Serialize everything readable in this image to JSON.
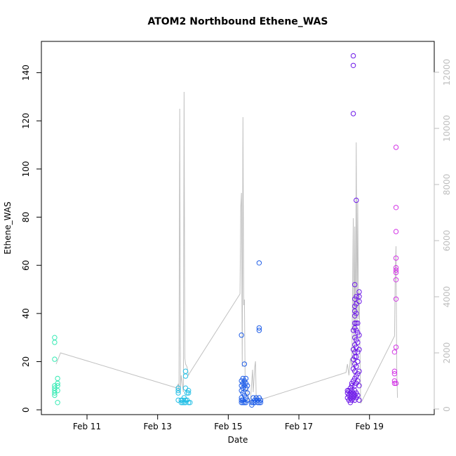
{
  "chart_data": {
    "type": "scatter",
    "title": "ATOM2 Northbound Ethene_WAS",
    "xlabel": "Date",
    "ylabel": "Ethene_WAS",
    "x_axis": {
      "type": "date",
      "range": [
        "2016-02-09T17:00",
        "2016-02-20T20:00"
      ],
      "ticks": [
        {
          "value": "2016-02-11",
          "label": "Feb 11"
        },
        {
          "value": "2016-02-13",
          "label": "Feb 13"
        },
        {
          "value": "2016-02-15",
          "label": "Feb 15"
        },
        {
          "value": "2016-02-17",
          "label": "Feb 17"
        },
        {
          "value": "2016-02-19",
          "label": "Feb 19"
        }
      ]
    },
    "y_axis_left": {
      "range": [
        -2,
        153
      ],
      "ticks": [
        0,
        20,
        40,
        60,
        80,
        100,
        120,
        140
      ]
    },
    "y_axis_right": {
      "range": [
        -200,
        13100
      ],
      "ticks": [
        0,
        2000,
        4000,
        6000,
        8000,
        10000,
        12000
      ],
      "color": "#bebebe"
    },
    "grid": false,
    "legend": "none",
    "series": [
      {
        "color": "#36eab4",
        "points": [
          [
            "2016-02-10T02:00",
            30
          ],
          [
            "2016-02-10T02:00",
            28
          ],
          [
            "2016-02-10T02:00",
            21
          ],
          [
            "2016-02-10T02:00",
            10
          ],
          [
            "2016-02-10T02:00",
            9
          ],
          [
            "2016-02-10T02:00",
            8
          ],
          [
            "2016-02-10T02:00",
            7
          ],
          [
            "2016-02-10T02:00",
            6
          ],
          [
            "2016-02-10T04:00",
            13
          ],
          [
            "2016-02-10T04:00",
            11
          ],
          [
            "2016-02-10T04:00",
            10
          ],
          [
            "2016-02-10T04:00",
            8
          ],
          [
            "2016-02-10T04:00",
            3
          ]
        ]
      },
      {
        "color": "#27c0e6",
        "points": [
          [
            "2016-02-13T14:00",
            9
          ],
          [
            "2016-02-13T14:00",
            8
          ],
          [
            "2016-02-13T14:00",
            7
          ],
          [
            "2016-02-13T14:00",
            4
          ],
          [
            "2016-02-13T16:00",
            4
          ],
          [
            "2016-02-13T16:00",
            3
          ],
          [
            "2016-02-13T17:00",
            4
          ],
          [
            "2016-02-13T17:00",
            3
          ],
          [
            "2016-02-13T18:00",
            5
          ],
          [
            "2016-02-13T18:00",
            3
          ],
          [
            "2016-02-13T19:00",
            16
          ],
          [
            "2016-02-13T19:00",
            14
          ],
          [
            "2016-02-13T19:00",
            9
          ],
          [
            "2016-02-13T19:00",
            4
          ],
          [
            "2016-02-13T19:00",
            3
          ],
          [
            "2016-02-13T20:00",
            7
          ],
          [
            "2016-02-13T20:00",
            4
          ],
          [
            "2016-02-13T21:00",
            8
          ],
          [
            "2016-02-13T21:00",
            7
          ],
          [
            "2016-02-13T21:00",
            3
          ],
          [
            "2016-02-13T22:00",
            3
          ]
        ]
      },
      {
        "color": "#1f5ee8",
        "points": [
          [
            "2016-02-15T09:00",
            31
          ],
          [
            "2016-02-15T09:00",
            12
          ],
          [
            "2016-02-15T09:00",
            10
          ],
          [
            "2016-02-15T09:00",
            8
          ],
          [
            "2016-02-15T09:00",
            5
          ],
          [
            "2016-02-15T09:00",
            4
          ],
          [
            "2016-02-15T09:00",
            3
          ],
          [
            "2016-02-15T10:00",
            13
          ],
          [
            "2016-02-15T10:00",
            11
          ],
          [
            "2016-02-15T10:00",
            9
          ],
          [
            "2016-02-15T10:00",
            7
          ],
          [
            "2016-02-15T10:00",
            4
          ],
          [
            "2016-02-15T10:00",
            3
          ],
          [
            "2016-02-15T11:00",
            19
          ],
          [
            "2016-02-15T11:00",
            12
          ],
          [
            "2016-02-15T11:00",
            10
          ],
          [
            "2016-02-15T11:00",
            6
          ],
          [
            "2016-02-15T11:00",
            3
          ],
          [
            "2016-02-15T12:00",
            13
          ],
          [
            "2016-02-15T12:00",
            11
          ],
          [
            "2016-02-15T12:00",
            9
          ],
          [
            "2016-02-15T12:00",
            5
          ],
          [
            "2016-02-15T12:00",
            3
          ],
          [
            "2016-02-15T13:00",
            10
          ],
          [
            "2016-02-15T13:00",
            7
          ],
          [
            "2016-02-15T13:00",
            4
          ],
          [
            "2016-02-15T16:00",
            3
          ],
          [
            "2016-02-15T16:00",
            2
          ],
          [
            "2016-02-15T17:00",
            5
          ],
          [
            "2016-02-15T17:00",
            3
          ],
          [
            "2016-02-15T18:00",
            4
          ],
          [
            "2016-02-15T18:00",
            3
          ],
          [
            "2016-02-15T19:00",
            5
          ],
          [
            "2016-02-15T20:00",
            4
          ],
          [
            "2016-02-15T20:00",
            3
          ],
          [
            "2016-02-15T21:00",
            61
          ],
          [
            "2016-02-15T21:00",
            34
          ],
          [
            "2016-02-15T21:00",
            33
          ],
          [
            "2016-02-15T21:00",
            5
          ],
          [
            "2016-02-15T21:00",
            3
          ],
          [
            "2016-02-15T22:00",
            4
          ],
          [
            "2016-02-15T22:00",
            3
          ]
        ]
      },
      {
        "color": "#6d18e8",
        "points": [
          [
            "2016-02-18T09:00",
            8
          ],
          [
            "2016-02-18T09:00",
            7
          ],
          [
            "2016-02-18T09:00",
            5
          ],
          [
            "2016-02-18T10:00",
            8
          ],
          [
            "2016-02-18T10:00",
            6
          ],
          [
            "2016-02-18T10:00",
            4
          ],
          [
            "2016-02-18T11:00",
            9
          ],
          [
            "2016-02-18T11:00",
            7
          ],
          [
            "2016-02-18T11:00",
            5
          ],
          [
            "2016-02-18T11:00",
            3
          ],
          [
            "2016-02-18T12:00",
            11
          ],
          [
            "2016-02-18T12:00",
            10
          ],
          [
            "2016-02-18T12:00",
            8
          ],
          [
            "2016-02-18T12:00",
            6
          ],
          [
            "2016-02-18T12:00",
            4
          ],
          [
            "2016-02-18T13:00",
            147
          ],
          [
            "2016-02-18T13:00",
            143
          ],
          [
            "2016-02-18T13:00",
            123
          ],
          [
            "2016-02-18T13:00",
            33
          ],
          [
            "2016-02-18T13:00",
            25
          ],
          [
            "2016-02-18T13:00",
            21
          ],
          [
            "2016-02-18T13:00",
            17
          ],
          [
            "2016-02-18T13:00",
            12
          ],
          [
            "2016-02-18T13:00",
            7
          ],
          [
            "2016-02-18T13:00",
            5
          ],
          [
            "2016-02-18T14:00",
            52
          ],
          [
            "2016-02-18T14:00",
            46
          ],
          [
            "2016-02-18T14:00",
            43
          ],
          [
            "2016-02-18T14:00",
            41
          ],
          [
            "2016-02-18T14:00",
            39
          ],
          [
            "2016-02-18T14:00",
            36
          ],
          [
            "2016-02-18T14:00",
            34
          ],
          [
            "2016-02-18T14:00",
            30
          ],
          [
            "2016-02-18T14:00",
            27
          ],
          [
            "2016-02-18T14:00",
            24
          ],
          [
            "2016-02-18T14:00",
            22
          ],
          [
            "2016-02-18T14:00",
            19
          ],
          [
            "2016-02-18T14:00",
            16
          ],
          [
            "2016-02-18T14:00",
            13
          ],
          [
            "2016-02-18T14:00",
            10
          ],
          [
            "2016-02-18T14:00",
            8
          ],
          [
            "2016-02-18T14:00",
            6
          ],
          [
            "2016-02-18T14:00",
            4
          ],
          [
            "2016-02-18T15:00",
            87
          ],
          [
            "2016-02-18T15:00",
            47
          ],
          [
            "2016-02-18T15:00",
            44
          ],
          [
            "2016-02-18T15:00",
            40
          ],
          [
            "2016-02-18T15:00",
            36
          ],
          [
            "2016-02-18T15:00",
            33
          ],
          [
            "2016-02-18T15:00",
            29
          ],
          [
            "2016-02-18T15:00",
            26
          ],
          [
            "2016-02-18T15:00",
            22
          ],
          [
            "2016-02-18T15:00",
            18
          ],
          [
            "2016-02-18T15:00",
            14
          ],
          [
            "2016-02-18T15:00",
            11
          ],
          [
            "2016-02-18T15:00",
            7
          ],
          [
            "2016-02-18T15:00",
            5
          ],
          [
            "2016-02-18T16:00",
            36
          ],
          [
            "2016-02-18T16:00",
            32
          ],
          [
            "2016-02-18T16:00",
            28
          ],
          [
            "2016-02-18T16:00",
            24
          ],
          [
            "2016-02-18T16:00",
            20
          ],
          [
            "2016-02-18T16:00",
            15
          ],
          [
            "2016-02-18T16:00",
            12
          ],
          [
            "2016-02-18T16:00",
            6
          ],
          [
            "2016-02-18T17:00",
            49
          ],
          [
            "2016-02-18T17:00",
            47
          ],
          [
            "2016-02-18T17:00",
            45
          ],
          [
            "2016-02-18T17:00",
            31
          ],
          [
            "2016-02-18T17:00",
            25
          ],
          [
            "2016-02-18T17:00",
            16
          ],
          [
            "2016-02-18T17:00",
            10
          ],
          [
            "2016-02-18T17:00",
            4
          ]
        ]
      },
      {
        "color": "#d336e6",
        "points": [
          [
            "2016-02-19T17:00",
            24
          ],
          [
            "2016-02-19T17:00",
            16
          ],
          [
            "2016-02-19T17:00",
            15
          ],
          [
            "2016-02-19T17:00",
            12
          ],
          [
            "2016-02-19T17:00",
            11
          ],
          [
            "2016-02-19T18:00",
            109
          ],
          [
            "2016-02-19T18:00",
            84
          ],
          [
            "2016-02-19T18:00",
            74
          ],
          [
            "2016-02-19T18:00",
            63
          ],
          [
            "2016-02-19T18:00",
            59
          ],
          [
            "2016-02-19T18:00",
            58
          ],
          [
            "2016-02-19T18:00",
            57
          ],
          [
            "2016-02-19T18:00",
            54
          ],
          [
            "2016-02-19T18:00",
            46
          ],
          [
            "2016-02-19T18:00",
            26
          ],
          [
            "2016-02-19T18:00",
            11
          ]
        ]
      }
    ],
    "line_series": {
      "axis": "right",
      "color": "#c0c0c0",
      "points": [
        [
          "2016-02-10T03:00",
          1600
        ],
        [
          "2016-02-10T06:00",
          2000
        ],
        [
          "2016-02-13T13:00",
          750
        ],
        [
          "2016-02-13T14:00",
          900
        ],
        [
          "2016-02-13T14:30",
          600
        ],
        [
          "2016-02-13T15:00",
          10700
        ],
        [
          "2016-02-13T15:30",
          700
        ],
        [
          "2016-02-13T16:00",
          1200
        ],
        [
          "2016-02-13T17:00",
          800
        ],
        [
          "2016-02-13T17:30",
          600
        ],
        [
          "2016-02-13T18:00",
          11300
        ],
        [
          "2016-02-13T18:30",
          1800
        ],
        [
          "2016-02-13T19:00",
          1600
        ],
        [
          "2016-02-13T20:00",
          1500
        ],
        [
          "2016-02-13T21:00",
          1200
        ],
        [
          "2016-02-13T22:00",
          1300
        ],
        [
          "2016-02-15T08:00",
          4100
        ],
        [
          "2016-02-15T08:30",
          7200
        ],
        [
          "2016-02-15T09:00",
          7700
        ],
        [
          "2016-02-15T09:30",
          1500
        ],
        [
          "2016-02-15T10:00",
          10400
        ],
        [
          "2016-02-15T10:30",
          3700
        ],
        [
          "2016-02-15T11:00",
          3900
        ],
        [
          "2016-02-15T11:30",
          800
        ],
        [
          "2016-02-15T12:00",
          600
        ],
        [
          "2016-02-15T13:00",
          700
        ],
        [
          "2016-02-15T14:00",
          300
        ],
        [
          "2016-02-15T15:00",
          200
        ],
        [
          "2016-02-15T16:00",
          1000
        ],
        [
          "2016-02-15T16:30",
          1400
        ],
        [
          "2016-02-15T17:00",
          600
        ],
        [
          "2016-02-15T18:00",
          1500
        ],
        [
          "2016-02-15T18:30",
          1700
        ],
        [
          "2016-02-15T19:00",
          400
        ],
        [
          "2016-02-15T20:00",
          300
        ],
        [
          "2016-02-18T08:00",
          1300
        ],
        [
          "2016-02-18T09:00",
          1600
        ],
        [
          "2016-02-18T10:00",
          1200
        ],
        [
          "2016-02-18T11:00",
          1800
        ],
        [
          "2016-02-18T12:00",
          1500
        ],
        [
          "2016-02-18T13:00",
          6800
        ],
        [
          "2016-02-18T13:30",
          1200
        ],
        [
          "2016-02-18T14:00",
          6500
        ],
        [
          "2016-02-18T14:30",
          2500
        ],
        [
          "2016-02-18T15:00",
          9500
        ],
        [
          "2016-02-18T15:30",
          3000
        ],
        [
          "2016-02-18T16:00",
          7400
        ],
        [
          "2016-02-18T16:30",
          3200
        ],
        [
          "2016-02-18T17:00",
          4200
        ],
        [
          "2016-02-18T18:00",
          200
        ],
        [
          "2016-02-18T19:00",
          300
        ],
        [
          "2016-02-19T17:00",
          2600
        ],
        [
          "2016-02-19T17:30",
          4800
        ],
        [
          "2016-02-19T18:00",
          5800
        ],
        [
          "2016-02-19T18:30",
          1500
        ],
        [
          "2016-02-19T19:00",
          400
        ]
      ]
    }
  }
}
